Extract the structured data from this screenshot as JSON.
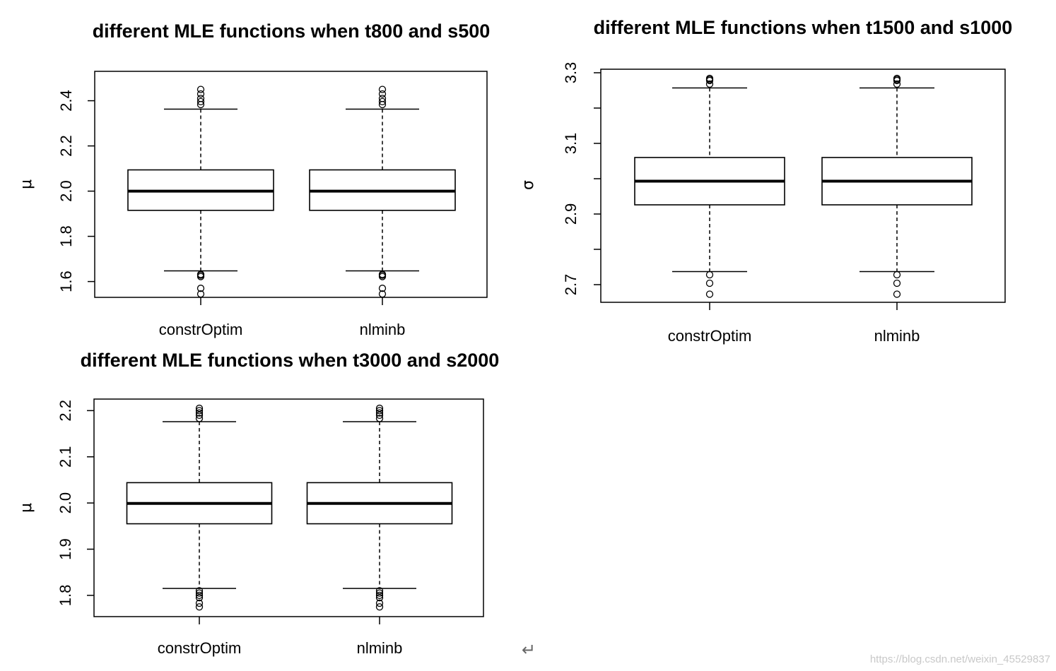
{
  "chart_data": [
    {
      "type": "box",
      "title": "different MLE functions when t800 and s500",
      "ylabel": "μ",
      "categories": [
        "constrOptim",
        "nlminb"
      ],
      "ylim": [
        1.53,
        2.53
      ],
      "yticks": [
        1.6,
        1.8,
        2.0,
        2.2,
        2.4
      ],
      "ytick_labels": [
        "1.6",
        "1.8",
        "2.0",
        "2.2",
        "2.4"
      ],
      "series": [
        {
          "category": "constrOptim",
          "whisker_low": 1.647,
          "q1": 1.915,
          "median": 2.0,
          "q3": 2.094,
          "whisker_high": 2.363,
          "outliers": [
            1.622,
            1.628,
            1.632,
            1.57,
            1.545,
            2.383,
            2.396,
            2.41,
            2.43,
            2.45
          ]
        },
        {
          "category": "nlminb",
          "whisker_low": 1.647,
          "q1": 1.915,
          "median": 2.0,
          "q3": 2.094,
          "whisker_high": 2.363,
          "outliers": [
            1.622,
            1.628,
            1.632,
            1.57,
            1.545,
            2.383,
            2.396,
            2.41,
            2.43,
            2.45
          ]
        }
      ]
    },
    {
      "type": "box",
      "title": "different MLE functions when t1500 and s1000",
      "ylabel": "σ",
      "categories": [
        "constrOptim",
        "nlminb"
      ],
      "ylim": [
        2.65,
        3.31
      ],
      "yticks": [
        2.7,
        2.8,
        2.9,
        3.0,
        3.1,
        3.2,
        3.3
      ],
      "ytick_labels": [
        "2.7",
        "",
        "2.9",
        "",
        "3.1",
        "",
        "3.3"
      ],
      "series": [
        {
          "category": "constrOptim",
          "whisker_low": 2.737,
          "q1": 2.926,
          "median": 2.993,
          "q3": 3.06,
          "whisker_high": 3.257,
          "outliers": [
            2.728,
            2.704,
            2.673,
            3.268,
            3.278,
            3.281,
            3.284
          ]
        },
        {
          "category": "nlminb",
          "whisker_low": 2.737,
          "q1": 2.926,
          "median": 2.993,
          "q3": 3.06,
          "whisker_high": 3.257,
          "outliers": [
            2.728,
            2.704,
            2.673,
            3.268,
            3.278,
            3.281,
            3.284
          ]
        }
      ]
    },
    {
      "type": "box",
      "title": "different MLE functions when t3000 and s2000",
      "ylabel": "μ",
      "categories": [
        "constrOptim",
        "nlminb"
      ],
      "ylim": [
        1.754,
        2.225
      ],
      "yticks": [
        1.8,
        1.9,
        2.0,
        2.1,
        2.2
      ],
      "ytick_labels": [
        "1.8",
        "1.9",
        "2.0",
        "2.1",
        "2.2"
      ],
      "series": [
        {
          "category": "constrOptim",
          "whisker_low": 1.815,
          "q1": 1.955,
          "median": 1.999,
          "q3": 2.044,
          "whisker_high": 2.176,
          "outliers": [
            1.81,
            1.805,
            1.8,
            1.795,
            1.783,
            1.775,
            2.183,
            2.19,
            2.195,
            2.2,
            2.205
          ]
        },
        {
          "category": "nlminb",
          "whisker_low": 1.815,
          "q1": 1.955,
          "median": 1.999,
          "q3": 2.044,
          "whisker_high": 2.176,
          "outliers": [
            1.81,
            1.805,
            1.8,
            1.795,
            1.783,
            1.775,
            2.183,
            2.19,
            2.195,
            2.2,
            2.205
          ]
        }
      ]
    }
  ],
  "decor": {
    "return_glyph": "↵",
    "watermark": "https://blog.csdn.net/weixin_45529837"
  }
}
